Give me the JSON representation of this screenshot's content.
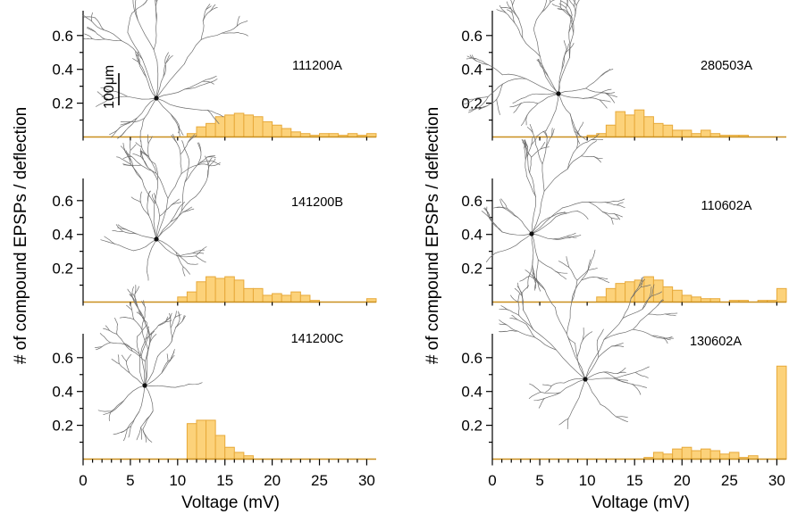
{
  "figure": {
    "y_axis_title": "# of compound EPSPs / deflection",
    "x_axis_title": "Voltage (mV)",
    "x_ticks": [
      "0",
      "5",
      "10",
      "15",
      "20",
      "25",
      "30"
    ],
    "y_ticks": [
      "0.2",
      "0.4",
      "0.6"
    ],
    "scale_bar_label": "100μm",
    "bar_color": "#fcd27a",
    "bar_edge_color": "#e7a93a"
  },
  "chart_data": [
    {
      "type": "bar",
      "cell_id": "111200A",
      "xlim": [
        0,
        31
      ],
      "ylim": [
        0,
        0.66
      ],
      "bin_width": 1,
      "bins": [
        [
          11,
          0.02
        ],
        [
          12,
          0.06
        ],
        [
          13,
          0.08
        ],
        [
          14,
          0.12
        ],
        [
          15,
          0.13
        ],
        [
          16,
          0.14
        ],
        [
          17,
          0.13
        ],
        [
          18,
          0.12
        ],
        [
          19,
          0.09
        ],
        [
          20,
          0.07
        ],
        [
          21,
          0.05
        ],
        [
          22,
          0.03
        ],
        [
          23,
          0.02
        ],
        [
          24,
          0.01
        ],
        [
          25,
          0.02
        ],
        [
          26,
          0.02
        ],
        [
          27,
          0.01
        ],
        [
          28,
          0.02
        ],
        [
          29,
          0.01
        ],
        [
          30,
          0.02
        ]
      ]
    },
    {
      "type": "bar",
      "cell_id": "280503A",
      "xlim": [
        0,
        31
      ],
      "ylim": [
        0,
        0.66
      ],
      "bin_width": 1,
      "bins": [
        [
          10,
          0.01
        ],
        [
          11,
          0.02
        ],
        [
          12,
          0.07
        ],
        [
          13,
          0.15
        ],
        [
          14,
          0.13
        ],
        [
          15,
          0.16
        ],
        [
          16,
          0.12
        ],
        [
          17,
          0.08
        ],
        [
          18,
          0.07
        ],
        [
          19,
          0.04
        ],
        [
          20,
          0.04
        ],
        [
          21,
          0.02
        ],
        [
          22,
          0.04
        ],
        [
          23,
          0.02
        ],
        [
          24,
          0.01
        ],
        [
          25,
          0.01
        ],
        [
          26,
          0.01
        ]
      ]
    },
    {
      "type": "bar",
      "cell_id": "141200B",
      "xlim": [
        0,
        31
      ],
      "ylim": [
        0,
        0.66
      ],
      "bin_width": 1,
      "bins": [
        [
          10,
          0.03
        ],
        [
          11,
          0.06
        ],
        [
          12,
          0.12
        ],
        [
          13,
          0.15
        ],
        [
          14,
          0.14
        ],
        [
          15,
          0.15
        ],
        [
          16,
          0.13
        ],
        [
          17,
          0.08
        ],
        [
          18,
          0.08
        ],
        [
          19,
          0.04
        ],
        [
          20,
          0.05
        ],
        [
          21,
          0.04
        ],
        [
          22,
          0.06
        ],
        [
          23,
          0.04
        ],
        [
          24,
          0.01
        ],
        [
          30,
          0.02
        ]
      ]
    },
    {
      "type": "bar",
      "cell_id": "110602A",
      "xlim": [
        0,
        31
      ],
      "ylim": [
        0,
        0.66
      ],
      "bin_width": 1,
      "bins": [
        [
          11,
          0.03
        ],
        [
          12,
          0.08
        ],
        [
          13,
          0.11
        ],
        [
          14,
          0.12
        ],
        [
          15,
          0.13
        ],
        [
          16,
          0.15
        ],
        [
          17,
          0.13
        ],
        [
          18,
          0.09
        ],
        [
          19,
          0.07
        ],
        [
          20,
          0.04
        ],
        [
          21,
          0.03
        ],
        [
          22,
          0.02
        ],
        [
          23,
          0.02
        ],
        [
          25,
          0.01
        ],
        [
          26,
          0.01
        ],
        [
          28,
          0.01
        ],
        [
          29,
          0.01
        ],
        [
          30,
          0.08
        ]
      ]
    },
    {
      "type": "bar",
      "cell_id": "141200C",
      "xlim": [
        0,
        31
      ],
      "ylim": [
        0,
        0.66
      ],
      "bin_width": 1,
      "bins": [
        [
          11,
          0.21
        ],
        [
          12,
          0.23
        ],
        [
          13,
          0.23
        ],
        [
          14,
          0.14
        ],
        [
          15,
          0.07
        ],
        [
          16,
          0.04
        ],
        [
          17,
          0.02
        ]
      ]
    },
    {
      "type": "bar",
      "cell_id": "130602A",
      "xlim": [
        0,
        31
      ],
      "ylim": [
        0,
        0.66
      ],
      "bin_width": 1,
      "bins": [
        [
          16,
          0.01
        ],
        [
          17,
          0.04
        ],
        [
          18,
          0.03
        ],
        [
          19,
          0.06
        ],
        [
          20,
          0.07
        ],
        [
          21,
          0.05
        ],
        [
          22,
          0.06
        ],
        [
          23,
          0.05
        ],
        [
          24,
          0.03
        ],
        [
          25,
          0.04
        ],
        [
          26,
          0.01
        ],
        [
          27,
          0.02
        ],
        [
          30,
          0.55
        ]
      ]
    }
  ]
}
